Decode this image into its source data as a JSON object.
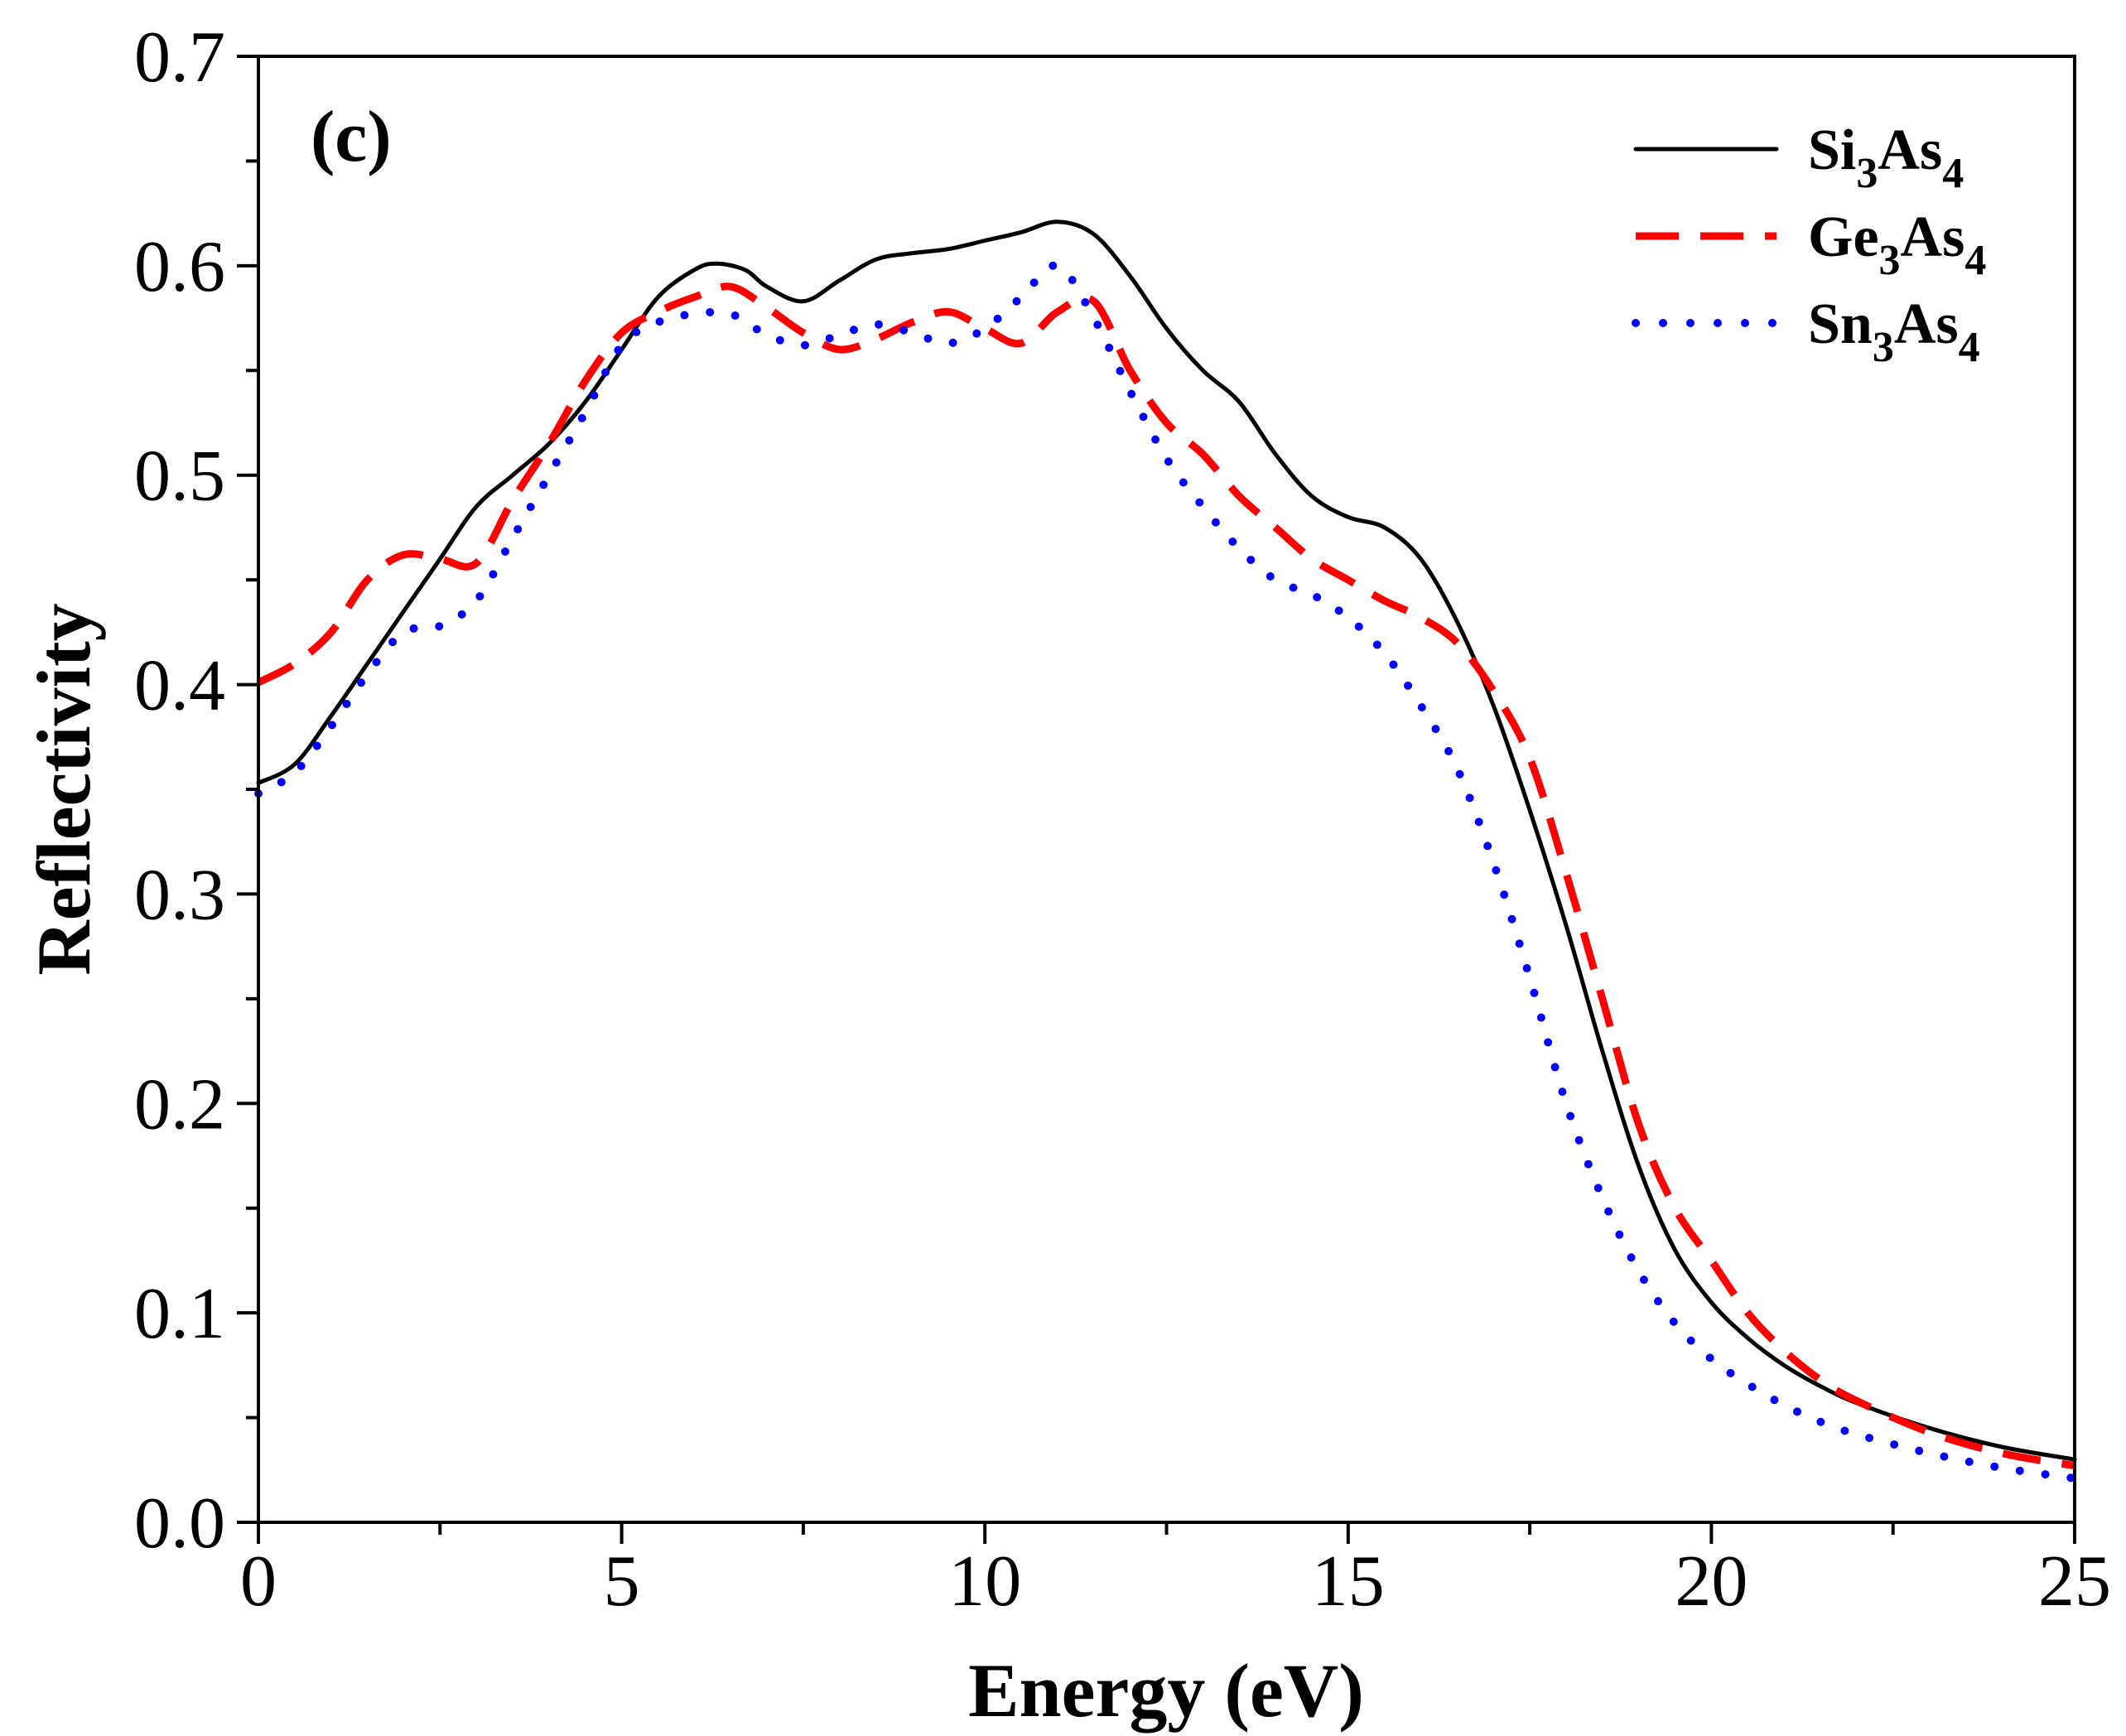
{
  "chart_data": {
    "type": "line",
    "panel_label": "(c)",
    "xlabel": "Energy (eV)",
    "ylabel": "Reflectivity",
    "xlim": [
      0,
      25
    ],
    "ylim": [
      0,
      0.7
    ],
    "xticks": [
      0,
      5,
      10,
      15,
      20,
      25
    ],
    "xtick_labels": [
      "0",
      "5",
      "10",
      "15",
      "20",
      "25"
    ],
    "yticks": [
      0.0,
      0.1,
      0.2,
      0.3,
      0.4,
      0.5,
      0.6,
      0.7
    ],
    "ytick_labels": [
      "0.0",
      "0.1",
      "0.2",
      "0.3",
      "0.4",
      "0.5",
      "0.6",
      "0.7"
    ],
    "legend_position": "top-right",
    "series": [
      {
        "name": "Si3As4",
        "label_parts": [
          [
            "Si",
            "n"
          ],
          [
            "3",
            "s"
          ],
          [
            "As",
            "n"
          ],
          [
            "4",
            "s"
          ]
        ],
        "color": "#000000",
        "style": "solid",
        "x": [
          0,
          0.5,
          1,
          1.5,
          2,
          2.5,
          3,
          3.5,
          4,
          4.5,
          5,
          5.5,
          6,
          6.3,
          6.7,
          7,
          7.5,
          8,
          8.5,
          9,
          9.5,
          10,
          10.5,
          11,
          11.5,
          12,
          12.5,
          13,
          13.5,
          14,
          14.5,
          15,
          15.5,
          16,
          16.5,
          17,
          17.5,
          18,
          18.5,
          19,
          19.5,
          20,
          20.5,
          21,
          21.5,
          22,
          23,
          24,
          25
        ],
        "y": [
          0.353,
          0.362,
          0.385,
          0.41,
          0.435,
          0.46,
          0.485,
          0.5,
          0.515,
          0.535,
          0.56,
          0.585,
          0.598,
          0.601,
          0.598,
          0.59,
          0.583,
          0.593,
          0.603,
          0.606,
          0.608,
          0.612,
          0.616,
          0.621,
          0.615,
          0.595,
          0.57,
          0.55,
          0.535,
          0.51,
          0.49,
          0.48,
          0.475,
          0.46,
          0.43,
          0.39,
          0.34,
          0.285,
          0.225,
          0.17,
          0.13,
          0.105,
          0.088,
          0.075,
          0.065,
          0.057,
          0.045,
          0.036,
          0.03
        ]
      },
      {
        "name": "Ge3As4",
        "label_parts": [
          [
            "Ge",
            "n"
          ],
          [
            "3",
            "s"
          ],
          [
            "As",
            "n"
          ],
          [
            "4",
            "s"
          ]
        ],
        "color": "#ff0000",
        "style": "dashed",
        "x": [
          0,
          0.5,
          1,
          1.5,
          2,
          2.5,
          3,
          3.5,
          4,
          4.5,
          5,
          5.5,
          6,
          6.5,
          7,
          7.5,
          8,
          8.5,
          9,
          9.5,
          10,
          10.5,
          11,
          11.5,
          12,
          12.5,
          13,
          13.5,
          14,
          14.5,
          15,
          15.5,
          16,
          16.5,
          17,
          17.5,
          18,
          18.5,
          19,
          19.5,
          20,
          20.5,
          21,
          21.5,
          22,
          23,
          24,
          25
        ],
        "y": [
          0.401,
          0.41,
          0.425,
          0.45,
          0.462,
          0.46,
          0.458,
          0.488,
          0.515,
          0.545,
          0.568,
          0.578,
          0.585,
          0.59,
          0.58,
          0.568,
          0.56,
          0.565,
          0.573,
          0.578,
          0.57,
          0.563,
          0.578,
          0.583,
          0.55,
          0.525,
          0.51,
          0.49,
          0.475,
          0.46,
          0.45,
          0.44,
          0.432,
          0.42,
          0.397,
          0.365,
          0.31,
          0.25,
          0.19,
          0.15,
          0.125,
          0.1,
          0.082,
          0.068,
          0.058,
          0.043,
          0.033,
          0.027
        ]
      },
      {
        "name": "Sn3As4",
        "label_parts": [
          [
            "Sn",
            "n"
          ],
          [
            "3",
            "s"
          ],
          [
            "As",
            "n"
          ],
          [
            "4",
            "s"
          ]
        ],
        "color": "#0000ff",
        "style": "dotted",
        "x": [
          0,
          0.5,
          1,
          1.5,
          2,
          2.5,
          3,
          3.5,
          4,
          4.5,
          5,
          5.5,
          6,
          6.5,
          7,
          7.5,
          8,
          8.5,
          9,
          9.5,
          10,
          10.5,
          11,
          11.5,
          12,
          12.5,
          13,
          13.5,
          14,
          14.5,
          15,
          15.5,
          16,
          16.5,
          17,
          17.5,
          18,
          18.5,
          19,
          19.5,
          20,
          20.5,
          21,
          21.5,
          22,
          23,
          24,
          25
        ],
        "y": [
          0.348,
          0.358,
          0.38,
          0.405,
          0.425,
          0.428,
          0.44,
          0.47,
          0.5,
          0.53,
          0.562,
          0.573,
          0.577,
          0.577,
          0.567,
          0.562,
          0.567,
          0.572,
          0.568,
          0.563,
          0.57,
          0.585,
          0.6,
          0.575,
          0.54,
          0.508,
          0.485,
          0.465,
          0.45,
          0.443,
          0.432,
          0.415,
          0.39,
          0.36,
          0.315,
          0.26,
          0.2,
          0.155,
          0.12,
          0.095,
          0.078,
          0.066,
          0.056,
          0.048,
          0.042,
          0.033,
          0.026,
          0.021
        ]
      }
    ]
  }
}
